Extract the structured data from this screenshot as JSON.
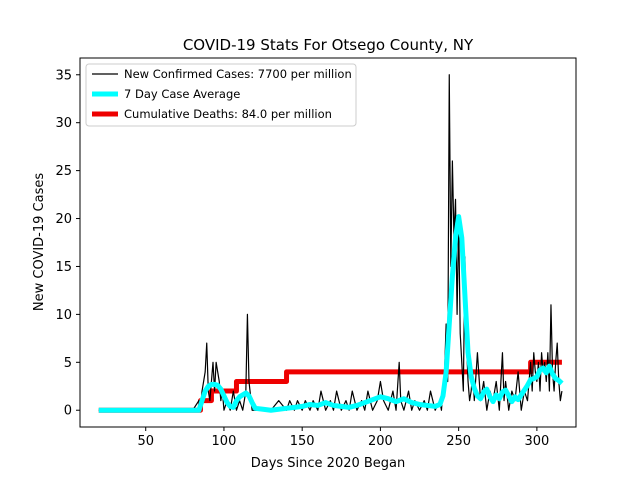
{
  "chart_data": {
    "type": "line",
    "title": "COVID-19 Stats For Otsego County, NY",
    "xlabel": "Days Since 2020 Began",
    "ylabel": "New COVID-19 Cases",
    "xlim": [
      8,
      325
    ],
    "ylim": [
      -1.75,
      36.75
    ],
    "xticks": [
      50,
      100,
      150,
      200,
      250,
      300
    ],
    "yticks": [
      0,
      5,
      10,
      15,
      20,
      25,
      30,
      35
    ],
    "grid": false,
    "legend_position": "top-left",
    "series": [
      {
        "name": "New Confirmed Cases: 7700 per million",
        "color": "#000000",
        "x": [
          20,
          80,
          84,
          85,
          86,
          87,
          88,
          89,
          90,
          91,
          92,
          93,
          94,
          95,
          96,
          97,
          98,
          99,
          100,
          102,
          104,
          106,
          108,
          110,
          112,
          114,
          115,
          116,
          118,
          120,
          125,
          130,
          135,
          140,
          142,
          145,
          147,
          150,
          152,
          155,
          157,
          160,
          162,
          165,
          168,
          170,
          172,
          175,
          178,
          180,
          182,
          185,
          188,
          190,
          192,
          195,
          198,
          200,
          202,
          205,
          208,
          210,
          212,
          213,
          215,
          218,
          220,
          222,
          225,
          228,
          230,
          232,
          235,
          238,
          239,
          240,
          241,
          242,
          243,
          244,
          245,
          246,
          247,
          248,
          249,
          250,
          251,
          252,
          253,
          254,
          255,
          256,
          257,
          258,
          259,
          260,
          262,
          264,
          266,
          268,
          270,
          272,
          274,
          276,
          278,
          279,
          280,
          282,
          284,
          286,
          288,
          290,
          292,
          294,
          295,
          296,
          297,
          298,
          299,
          300,
          301,
          302,
          303,
          304,
          305,
          306,
          307,
          308,
          309,
          310,
          311,
          312,
          313,
          314,
          315,
          316
        ],
        "values": [
          0,
          0,
          1,
          0,
          2,
          3,
          4,
          7,
          2,
          1,
          3,
          5,
          2,
          5,
          4,
          3,
          1,
          2,
          0,
          1,
          0,
          2,
          0,
          1,
          0,
          2,
          10,
          3,
          0,
          0,
          0,
          0,
          1,
          0,
          1,
          0,
          1,
          0,
          1,
          0,
          1,
          0,
          2,
          0,
          1,
          0,
          2,
          0,
          1,
          0,
          2,
          0,
          1,
          0,
          2,
          0,
          1,
          3,
          1,
          0,
          2,
          0,
          5,
          1,
          0,
          2,
          0,
          1,
          0,
          1,
          0,
          2,
          0,
          1,
          0,
          2,
          4,
          9,
          3,
          35,
          15,
          26,
          18,
          22,
          10,
          20,
          8,
          5,
          2,
          16,
          7,
          3,
          1,
          2,
          4,
          1,
          6,
          1,
          3,
          0,
          2,
          1,
          3,
          0,
          6,
          1,
          3,
          0,
          2,
          1,
          4,
          0,
          2,
          1,
          3,
          5,
          2,
          6,
          4,
          3,
          5,
          2,
          6,
          4,
          5,
          3,
          6,
          2,
          11,
          4,
          2,
          5,
          7,
          3,
          1,
          2
        ]
      },
      {
        "name": "7 Day Case Average",
        "color": "#00ffff",
        "x": [
          20,
          84,
          86,
          88,
          90,
          92,
          94,
          96,
          98,
          100,
          102,
          104,
          106,
          108,
          110,
          112,
          114,
          116,
          118,
          120,
          125,
          130,
          135,
          140,
          145,
          150,
          155,
          160,
          165,
          170,
          175,
          180,
          185,
          190,
          195,
          200,
          205,
          210,
          215,
          220,
          225,
          230,
          235,
          238,
          240,
          242,
          244,
          246,
          248,
          250,
          252,
          254,
          256,
          258,
          260,
          262,
          264,
          266,
          268,
          270,
          272,
          274,
          276,
          278,
          280,
          282,
          284,
          286,
          288,
          290,
          292,
          294,
          296,
          298,
          300,
          302,
          304,
          306,
          308,
          310,
          312,
          314,
          316
        ],
        "values": [
          0,
          0,
          1,
          2,
          2.5,
          2.7,
          2.7,
          2.6,
          2.2,
          1.5,
          0.8,
          0.4,
          0.3,
          1,
          1.4,
          1.6,
          1.8,
          1.5,
          0.8,
          0.2,
          0.1,
          0,
          0.1,
          0.2,
          0.3,
          0.4,
          0.6,
          0.5,
          0.8,
          0.5,
          0.4,
          0.3,
          0.5,
          0.8,
          1.1,
          1.4,
          1.2,
          0.9,
          1.2,
          0.8,
          0.6,
          0.5,
          0.4,
          0.6,
          1.5,
          4,
          9,
          14,
          18,
          20.2,
          18,
          12,
          6,
          3.5,
          2.3,
          1.5,
          1.2,
          1.9,
          2.2,
          1.4,
          0.9,
          1.6,
          1.2,
          1.9,
          2.1,
          1.5,
          0.9,
          1.4,
          1.1,
          1.6,
          2.1,
          2.6,
          3.2,
          3.3,
          3.5,
          4.2,
          4.4,
          3.9,
          4.6,
          3.8,
          3.3,
          3.1,
          2.8
        ]
      },
      {
        "name": "Cumulative Deaths: 84.0 per million",
        "color": "#ee0000",
        "step": true,
        "x": [
          20,
          85,
          92,
          108,
          140,
          296,
          316
        ],
        "values": [
          0,
          1,
          2,
          3,
          4,
          5,
          5
        ]
      }
    ]
  }
}
